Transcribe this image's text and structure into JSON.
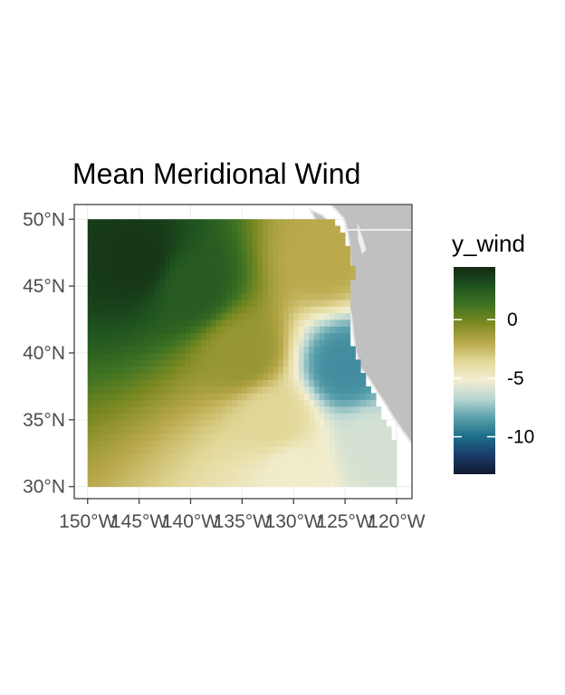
{
  "chart_data": {
    "type": "heatmap",
    "title": "Mean Meridional Wind",
    "xlabel": "",
    "ylabel": "",
    "xlim": [
      -151.3,
      -118.5
    ],
    "ylim": [
      29.1,
      51.1
    ],
    "x_ticks": [
      {
        "value": -150,
        "label": "150°W"
      },
      {
        "value": -145,
        "label": "145°W"
      },
      {
        "value": -140,
        "label": "140°W"
      },
      {
        "value": -135,
        "label": "135°W"
      },
      {
        "value": -130,
        "label": "130°W"
      },
      {
        "value": -125,
        "label": "125°W"
      },
      {
        "value": -120,
        "label": "120°W"
      }
    ],
    "y_ticks": [
      {
        "value": 30,
        "label": "30°N"
      },
      {
        "value": 35,
        "label": "35°N"
      },
      {
        "value": 40,
        "label": "40°N"
      },
      {
        "value": 45,
        "label": "45°N"
      },
      {
        "value": 50,
        "label": "50°N"
      }
    ],
    "grid": true,
    "data_extent": {
      "lon": [
        -150,
        -120
      ],
      "lat": [
        30,
        50
      ]
    },
    "field_summary": [
      {
        "lon": -145,
        "lat": 47,
        "y_wind": 4.0
      },
      {
        "lon": -140,
        "lat": 45,
        "y_wind": 2.5
      },
      {
        "lon": -135,
        "lat": 40,
        "y_wind": -1.0
      },
      {
        "lon": -132,
        "lat": 35,
        "y_wind": -3.5
      },
      {
        "lon": -130,
        "lat": 31,
        "y_wind": -5.0
      },
      {
        "lon": -127,
        "lat": 47,
        "y_wind": -2.0
      },
      {
        "lon": -125,
        "lat": 39,
        "y_wind": -9.0
      },
      {
        "lon": -122,
        "lat": 33,
        "y_wind": -6.0
      }
    ],
    "legend": {
      "title": "y_wind",
      "placement": "right",
      "range": [
        -13.2,
        4.5
      ],
      "ticks": [
        {
          "value": 0,
          "label": "0"
        },
        {
          "value": -5,
          "label": "-5"
        },
        {
          "value": -10,
          "label": "-10"
        }
      ],
      "colors": [
        "#121a30",
        "#1c3b6a",
        "#1b6f8a",
        "#5aa0ac",
        "#b9d6d3",
        "#f2eed0",
        "#e3d89a",
        "#b8a84a",
        "#7d8a22",
        "#3e7222",
        "#1f5320",
        "#112a12"
      ]
    },
    "land_color": "#c0c0c0",
    "panel_border": "#333333"
  }
}
